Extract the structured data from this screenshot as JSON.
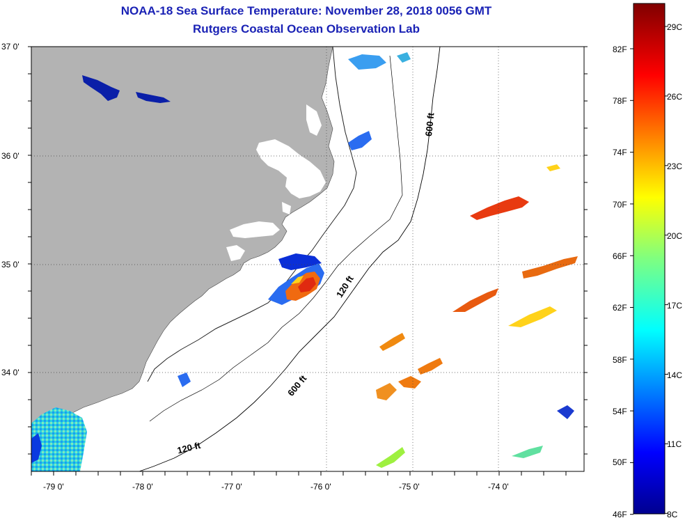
{
  "title_line1": "NOAA-18 Sea Surface Temperature:  November 28, 2018 0056 GMT",
  "title_line2": "Rutgers Coastal Ocean Observation Lab",
  "lat_labels": [
    "37 0'",
    "36 0'",
    "35 0'",
    "34 0'"
  ],
  "lon_labels": [
    "-79 0'",
    "-78 0'",
    "-77 0'",
    "-76 0'",
    "-75 0'",
    "-74 0'"
  ],
  "contour_labels": [
    "600 ft",
    "120 ft",
    "600 ft",
    "120 ft"
  ],
  "colorbar": {
    "fahrenheit": [
      "82F",
      "78F",
      "74F",
      "70F",
      "66F",
      "62F",
      "58F",
      "54F",
      "50F",
      "46F"
    ],
    "celsius": [
      "29C",
      "26C",
      "23C",
      "20C",
      "17C",
      "14C",
      "11C",
      "8C"
    ]
  },
  "colors": {
    "land": "#b3b3b3",
    "ocean": "#ffffff",
    "title": "#1a22b5"
  }
}
